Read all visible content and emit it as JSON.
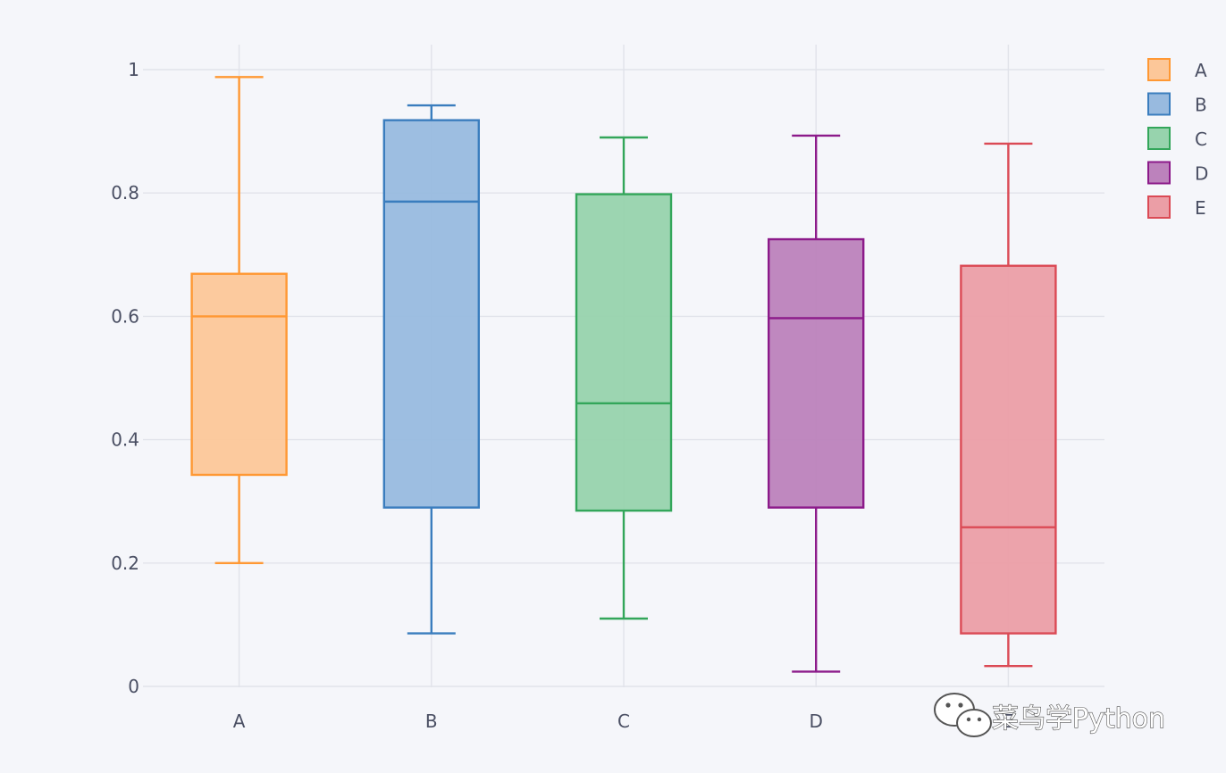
{
  "chart_data": {
    "type": "box",
    "title": "",
    "xlabel": "",
    "ylabel": "",
    "ylim": [
      0,
      1.04
    ],
    "yticks": [
      {
        "value": 0,
        "label": "0"
      },
      {
        "value": 0.2,
        "label": "0.2"
      },
      {
        "value": 0.4,
        "label": "0.4"
      },
      {
        "value": 0.6,
        "label": "0.6"
      },
      {
        "value": 0.8,
        "label": "0.8"
      },
      {
        "value": 1,
        "label": "1"
      }
    ],
    "categories": [
      "A",
      "B",
      "C",
      "D",
      "E"
    ],
    "grid": true,
    "legend_position": "top-right",
    "series": [
      {
        "name": "A",
        "color": "#ff9833",
        "fill": "#fcc799",
        "min": 0.2,
        "q1": 0.343,
        "median": 0.6,
        "q3": 0.669,
        "max": 0.988
      },
      {
        "name": "B",
        "color": "#3a7dbe",
        "fill": "#98badf",
        "min": 0.086,
        "q1": 0.29,
        "median": 0.786,
        "q3": 0.918,
        "max": 0.942
      },
      {
        "name": "C",
        "color": "#33a65a",
        "fill": "#97d3ad",
        "min": 0.11,
        "q1": 0.285,
        "median": 0.459,
        "q3": 0.798,
        "max": 0.89
      },
      {
        "name": "D",
        "color": "#8c1a8a",
        "fill": "#bc82bc",
        "min": 0.024,
        "q1": 0.29,
        "median": 0.597,
        "q3": 0.725,
        "max": 0.893
      },
      {
        "name": "E",
        "color": "#db4a55",
        "fill": "#eb9ea6",
        "min": 0.033,
        "q1": 0.086,
        "median": 0.258,
        "q3": 0.682,
        "max": 0.88
      }
    ]
  },
  "watermark": {
    "text": "菜鸟学Python",
    "icon": "wechat-icon"
  }
}
